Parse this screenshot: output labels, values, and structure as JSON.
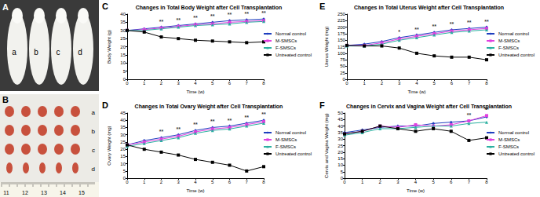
{
  "photos": [
    {
      "panel": "A",
      "labels": [
        "a",
        "b",
        "c",
        "d"
      ]
    },
    {
      "panel": "B",
      "labels": [
        "a",
        "b",
        "c",
        "d"
      ],
      "ruler": [
        11,
        12,
        13,
        14,
        15
      ]
    }
  ],
  "chart_data": [
    {
      "panel": "C",
      "type": "line",
      "title": "Changes in Total Body Weight after Cell Transplantation",
      "x_label": "Time (w)",
      "y_label": "Body Weight (g)",
      "x": [
        0,
        1,
        2,
        3,
        4,
        5,
        6,
        7,
        8
      ],
      "xlim": [
        0,
        8
      ],
      "xticks": [
        0,
        1,
        2,
        3,
        4,
        5,
        6,
        7,
        8
      ],
      "ylim": [
        0,
        40
      ],
      "yticks": [
        0,
        5,
        10,
        15,
        20,
        25,
        30,
        35,
        40
      ],
      "grid": false,
      "legend": "right",
      "series": [
        {
          "name": "Normal control",
          "color": "#1f3fbf",
          "marker": "diamond",
          "values": [
            30,
            31,
            32,
            33,
            34,
            35,
            36,
            36.5,
            37
          ]
        },
        {
          "name": "M-SMSCs",
          "color": "#e040e0",
          "marker": "square",
          "values": [
            30,
            30.5,
            31.5,
            32.5,
            33.5,
            34,
            35,
            35.5,
            36
          ]
        },
        {
          "name": "F-SMSCs",
          "color": "#2ab0a0",
          "marker": "triangle",
          "values": [
            30,
            30,
            31,
            32,
            33,
            33.5,
            34,
            35,
            35.5
          ]
        },
        {
          "name": "Untreated control",
          "color": "#000000",
          "marker": "square",
          "values": [
            30,
            29,
            26,
            25,
            24,
            23.5,
            23,
            22.5,
            23
          ]
        }
      ],
      "annotations": [
        {
          "x": 2,
          "text": "**"
        },
        {
          "x": 3,
          "text": "**"
        },
        {
          "x": 4,
          "text": "**"
        },
        {
          "x": 5,
          "text": "**"
        },
        {
          "x": 6,
          "text": "**"
        },
        {
          "x": 7,
          "text": "**"
        },
        {
          "x": 8,
          "text": "**"
        }
      ]
    },
    {
      "panel": "D",
      "type": "line",
      "title": "Changes in Total Ovary Weight after Cell Transplantation",
      "x_label": "Time (w)",
      "y_label": "Ovary Weight (mg)",
      "x": [
        0,
        1,
        2,
        3,
        4,
        5,
        6,
        7,
        8
      ],
      "xlim": [
        0,
        8
      ],
      "xticks": [
        0,
        1,
        2,
        3,
        4,
        5,
        6,
        7,
        8
      ],
      "ylim": [
        0,
        45
      ],
      "yticks": [
        0,
        5,
        10,
        15,
        20,
        25,
        30,
        35,
        40,
        45
      ],
      "grid": false,
      "legend": "right",
      "series": [
        {
          "name": "Normal control",
          "color": "#1f3fbf",
          "marker": "diamond",
          "values": [
            23,
            26,
            28,
            30,
            33,
            35,
            36,
            38,
            40
          ]
        },
        {
          "name": "M-SMSCs",
          "color": "#e040e0",
          "marker": "square",
          "values": [
            23,
            25,
            27,
            29,
            32,
            34,
            35,
            37,
            39
          ]
        },
        {
          "name": "F-SMSCs",
          "color": "#2ab0a0",
          "marker": "triangle",
          "values": [
            22,
            24,
            26,
            28,
            31,
            33,
            34,
            36,
            38
          ]
        },
        {
          "name": "Untreated control",
          "color": "#000000",
          "marker": "square",
          "values": [
            23,
            20,
            18,
            16,
            13,
            11,
            9,
            5,
            8
          ]
        }
      ],
      "annotations": [
        {
          "x": 2,
          "text": "**"
        },
        {
          "x": 3,
          "text": "**"
        },
        {
          "x": 4,
          "text": "**"
        },
        {
          "x": 5,
          "text": "**"
        },
        {
          "x": 6,
          "text": "**"
        },
        {
          "x": 7,
          "text": "**"
        },
        {
          "x": 8,
          "text": "**"
        }
      ]
    },
    {
      "panel": "E",
      "type": "line",
      "title": "Changes in Total Uterus Weight after Cell Transplantation",
      "x_label": "Time (w)",
      "y_label": "Uterus Weight (mg)",
      "x": [
        0,
        1,
        2,
        3,
        4,
        5,
        6,
        7,
        8
      ],
      "xlim": [
        0,
        8
      ],
      "xticks": [
        0,
        1,
        2,
        3,
        4,
        5,
        6,
        7,
        8
      ],
      "ylim": [
        0,
        250
      ],
      "yticks": [
        0,
        25,
        50,
        75,
        100,
        125,
        150,
        175,
        200,
        225,
        250
      ],
      "grid": false,
      "legend": "right",
      "series": [
        {
          "name": "Normal control",
          "color": "#1f3fbf",
          "marker": "diamond",
          "values": [
            130,
            135,
            145,
            160,
            170,
            180,
            190,
            195,
            200
          ]
        },
        {
          "name": "M-SMSCs",
          "color": "#e040e0",
          "marker": "square",
          "values": [
            130,
            130,
            140,
            155,
            165,
            175,
            185,
            190,
            195
          ]
        },
        {
          "name": "F-SMSCs",
          "color": "#2ab0a0",
          "marker": "triangle",
          "values": [
            128,
            128,
            135,
            150,
            160,
            170,
            180,
            185,
            190
          ]
        },
        {
          "name": "Untreated control",
          "color": "#000000",
          "marker": "square",
          "values": [
            130,
            128,
            128,
            120,
            100,
            90,
            85,
            85,
            75
          ]
        }
      ],
      "annotations": [
        {
          "x": 3,
          "text": "*"
        },
        {
          "x": 4,
          "text": "**"
        },
        {
          "x": 5,
          "text": "**"
        },
        {
          "x": 6,
          "text": "**"
        },
        {
          "x": 7,
          "text": "**"
        },
        {
          "x": 8,
          "text": "**"
        }
      ]
    },
    {
      "panel": "F",
      "type": "line",
      "title": "Changes in Cervix and Vagina Weight after Cell Transplantation",
      "x_label": "Time (w)",
      "y_label": "Cervix and Vagina Weight (mg)",
      "x": [
        0,
        1,
        2,
        3,
        4,
        5,
        6,
        7,
        8
      ],
      "xlim": [
        0,
        8
      ],
      "xticks": [
        0,
        1,
        2,
        3,
        4,
        5,
        6,
        7,
        8
      ],
      "ylim": [
        0,
        50
      ],
      "yticks": [
        0,
        5,
        10,
        15,
        20,
        25,
        30,
        35,
        40,
        45,
        50
      ],
      "grid": false,
      "legend": "right",
      "series": [
        {
          "name": "Normal control",
          "color": "#1f3fbf",
          "marker": "diamond",
          "values": [
            35,
            37,
            39,
            40,
            40,
            42,
            43,
            44,
            47
          ]
        },
        {
          "name": "M-SMSCs",
          "color": "#e040e0",
          "marker": "square",
          "values": [
            34,
            36,
            40,
            39,
            41,
            40,
            41,
            44,
            48
          ]
        },
        {
          "name": "F-SMSCs",
          "color": "#2ab0a0",
          "marker": "triangle",
          "values": [
            33,
            35,
            38,
            38,
            39,
            40,
            40,
            42,
            43
          ]
        },
        {
          "name": "Untreated control",
          "color": "#000000",
          "marker": "square",
          "values": [
            34,
            36,
            40,
            38,
            36,
            38,
            36,
            29,
            31
          ]
        }
      ],
      "annotations": [
        {
          "x": 7,
          "text": "**"
        },
        {
          "x": 8,
          "text": "**"
        }
      ]
    }
  ]
}
